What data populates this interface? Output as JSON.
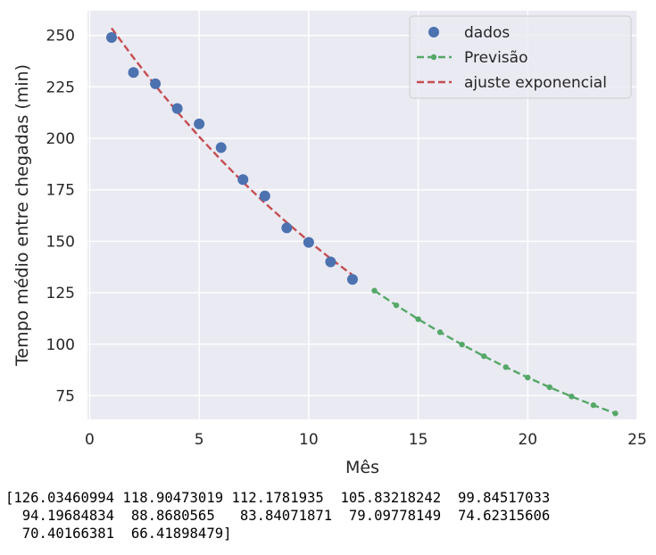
{
  "colors": {
    "plot_bg": "#eaeaf2",
    "grid": "#ffffff",
    "data_points": "#4c72b0",
    "forecast": "#55a868",
    "fit": "#c44e52"
  },
  "chart_data": {
    "type": "line",
    "xlabel": "Mês",
    "ylabel": "Tempo médio entre chegadas (min)",
    "xlim": [
      -0.1,
      25
    ],
    "ylim": [
      63.5,
      262
    ],
    "xticks": [
      0,
      5,
      10,
      15,
      20,
      25
    ],
    "yticks": [
      75,
      100,
      125,
      150,
      175,
      200,
      225,
      250
    ],
    "grid": true,
    "legend_position": "top-right",
    "series": [
      {
        "name": "dados",
        "style": "markers",
        "x": [
          1,
          2,
          3,
          4,
          5,
          6,
          7,
          8,
          9,
          10,
          11,
          12
        ],
        "y": [
          249,
          232,
          226.5,
          214.5,
          207,
          195.5,
          180,
          172,
          156.5,
          149.5,
          140,
          131.5
        ]
      },
      {
        "name": "Previsão",
        "style": "dashed-markers",
        "x": [
          13,
          14,
          15,
          16,
          17,
          18,
          19,
          20,
          21,
          22,
          23,
          24
        ],
        "y": [
          126.03460994,
          118.90473019,
          112.1781935,
          105.83218242,
          99.84517033,
          94.19684834,
          88.8680565,
          83.84071871,
          79.09778149,
          74.62315606,
          70.40166381,
          66.41898479
        ]
      },
      {
        "name": "ajuste exponencial",
        "style": "dashed",
        "x": [
          1,
          2,
          3,
          4,
          5,
          6,
          7,
          8,
          9,
          10,
          11,
          12
        ],
        "y": [
          253.5,
          239.2,
          225.6,
          212.9,
          200.8,
          189.5,
          178.7,
          168.6,
          159.1,
          150.1,
          141.6,
          133.6
        ]
      }
    ]
  },
  "output_text": "[126.03460994 118.90473019 112.1781935  105.83218242  99.84517033\n  94.19684834  88.8680565   83.84071871  79.09778149  74.62315606\n  70.40166381  66.41898479]"
}
